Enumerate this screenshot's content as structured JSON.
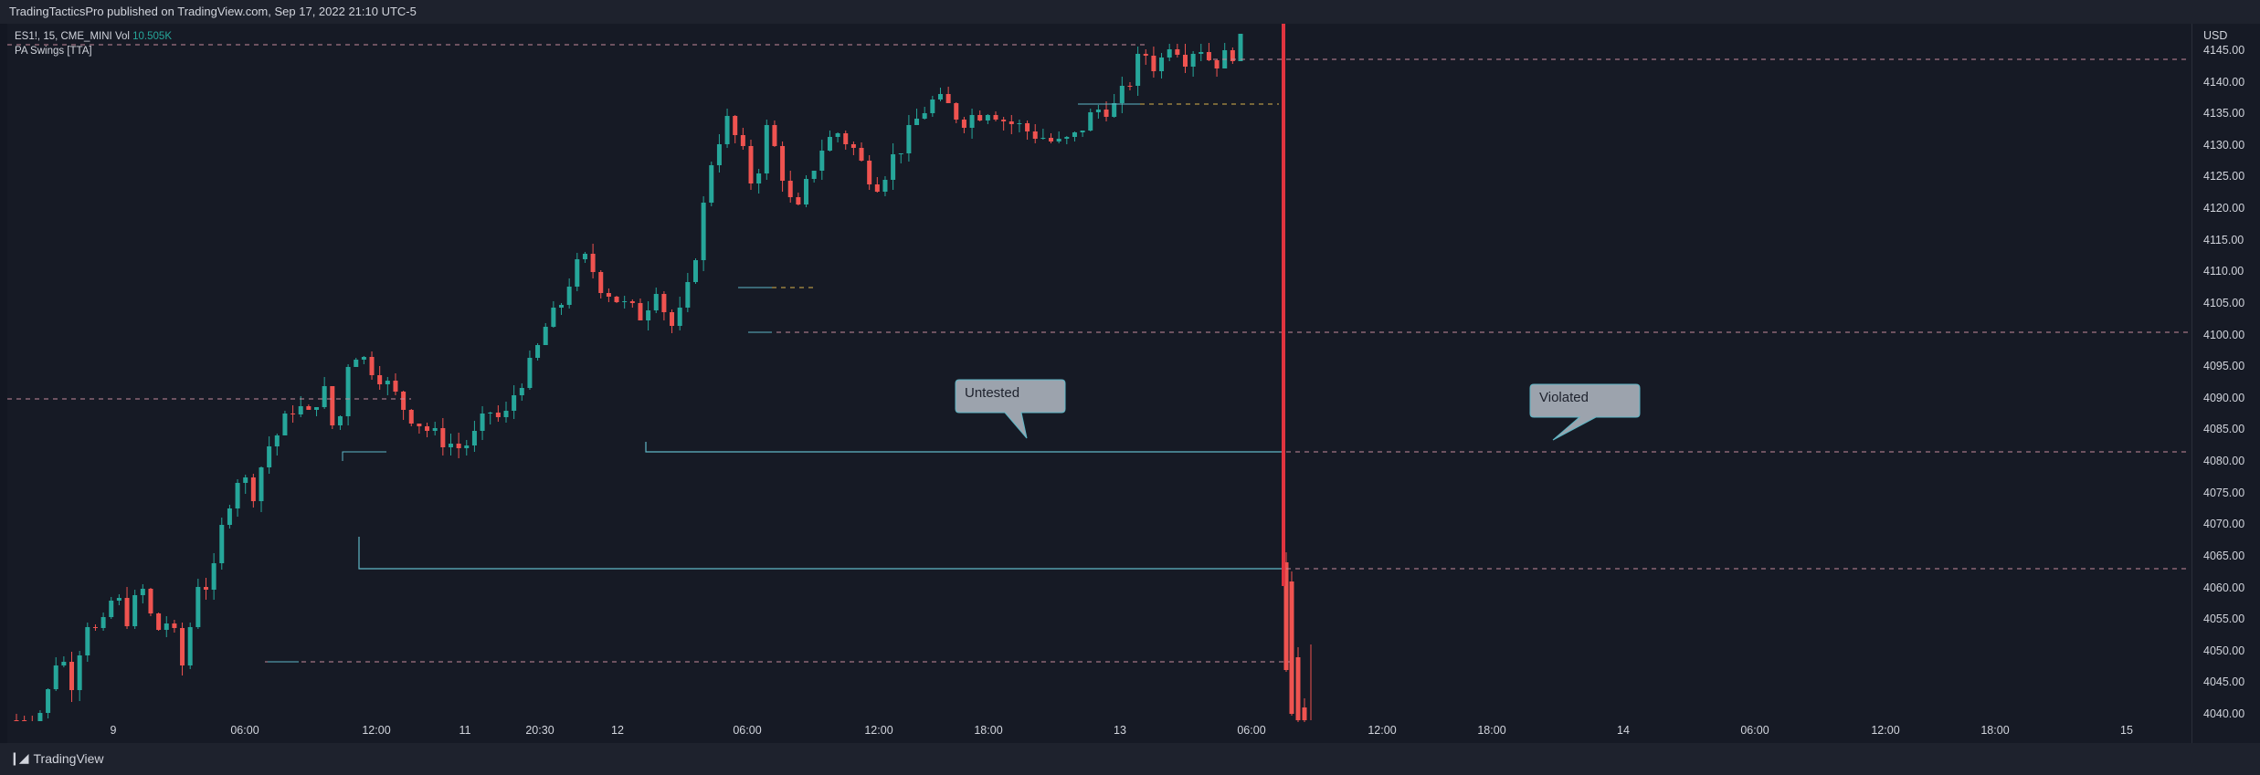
{
  "header": {
    "publisher_line": "TradingTacticsPro published on TradingView.com, Sep 17, 2022 21:10 UTC-5"
  },
  "legend": {
    "symbol_line": "ES1!, 15, CME_MINI",
    "vol_label": "Vol",
    "vol_value": "10.505K",
    "indicator": "PA Swings [TTA]"
  },
  "footer": {
    "brand": "TradingView"
  },
  "colors": {
    "background": "#131722",
    "up": "#26a69a",
    "down": "#ef5350",
    "swing_line": "#5fb7c6",
    "dashed_pink": "#c48a9a",
    "dashed_yellow": "#d8b24a",
    "big_red_line": "#e0343f",
    "callout_fill": "#9ca3ad"
  },
  "chart_data": {
    "type": "candlestick",
    "currency": "USD",
    "ylim": [
      4037.5,
      4146.5
    ],
    "y_ticks": [
      4040,
      4045,
      4050,
      4055,
      4060,
      4065,
      4070,
      4075,
      4080,
      4085,
      4090,
      4095,
      4100,
      4105,
      4110,
      4115,
      4120,
      4125,
      4130,
      4135,
      4140,
      4145
    ],
    "y_tick_labels": [
      "4040.00",
      "4045.00",
      "4050.00",
      "4055.00",
      "4060.00",
      "4065.00",
      "4070.00",
      "4075.00",
      "4080.00",
      "4085.00",
      "4090.00",
      "4095.00",
      "4100.00",
      "4105.00",
      "4110.00",
      "4115.00",
      "4120.00",
      "4125.00",
      "4130.00",
      "4135.00",
      "4140.00",
      "4145.00"
    ],
    "x_labels": [
      "9",
      "06:00",
      "12:00",
      "11",
      "20:30",
      "12",
      "06:00",
      "12:00",
      "18:00",
      "13",
      "06:00",
      "12:00",
      "18:00",
      "14",
      "06:00",
      "12:00",
      "18:00",
      "15"
    ],
    "bars_count": 156,
    "bars_close_path": [
      4039,
      4039,
      4041,
      4050,
      4045,
      4055,
      4052,
      4059,
      4055,
      4060,
      4053,
      4055,
      4047,
      4061,
      4060,
      4072,
      4078,
      4075,
      4082,
      4085,
      4089,
      4087,
      4092,
      4083,
      4098,
      4096,
      4094,
      4091,
      4088,
      4086,
      4084,
      4083,
      4082,
      4084,
      4088,
      4086,
      4092,
      4095,
      4101,
      4104,
      4110,
      4112,
      4108,
      4106,
      4104,
      4103,
      4108,
      4101,
      4104,
      4115,
      4128,
      4134,
      4130,
      4123,
      4133,
      4126,
      4118,
      4125,
      4130,
      4132,
      4130,
      4126,
      4124,
      4128,
      4131,
      4135,
      4137,
      4136,
      4134,
      4135,
      4136,
      4134,
      4133,
      4132,
      4131,
      4130,
      4131,
      4134,
      4136,
      4136,
      4140,
      4145,
      4142,
      4147,
      4144,
      4146,
      4143,
      4144,
      4146
    ],
    "levels": [
      {
        "price": 4145.9,
        "style": "dashed-pink"
      },
      {
        "price": 4143.6,
        "style": "dashed-pink"
      },
      {
        "price": 4136.5,
        "style": "dashed-yellow"
      },
      {
        "price": 4100.3,
        "style": "dashed-pink"
      },
      {
        "price": 4107.4,
        "style": "dashed-yellow"
      },
      {
        "price": 4089.9,
        "style": "dashed-pink"
      },
      {
        "price": 4081.4,
        "style": "solid-cyan"
      },
      {
        "price": 4062.9,
        "style": "solid-cyan"
      },
      {
        "price": 4062.9,
        "style": "dashed-pink"
      },
      {
        "price": 4081.4,
        "style": "dashed-pink"
      },
      {
        "price": 4048.3,
        "style": "dashed-pink"
      }
    ],
    "annotations": [
      {
        "text": "Untested",
        "price": 4081.4
      },
      {
        "text": "Violated",
        "price": 4081.4
      }
    ]
  }
}
